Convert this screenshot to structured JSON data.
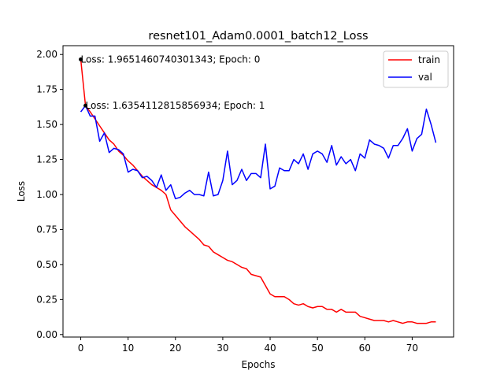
{
  "chart_data": {
    "type": "line",
    "title": "resnet101_Adam0.0001_batch12_Loss",
    "xlabel": "Epochs",
    "ylabel": "Loss",
    "xlim": [
      -3.75,
      78.75
    ],
    "ylim": [
      -0.018,
      2.063
    ],
    "xticks": [
      0,
      10,
      20,
      30,
      40,
      50,
      60,
      70
    ],
    "xtick_labels": [
      "0",
      "10",
      "20",
      "30",
      "40",
      "50",
      "60",
      "70"
    ],
    "yticks": [
      0.0,
      0.25,
      0.5,
      0.75,
      1.0,
      1.25,
      1.5,
      1.75,
      2.0
    ],
    "ytick_labels": [
      "0.00",
      "0.25",
      "0.50",
      "0.75",
      "1.00",
      "1.25",
      "1.50",
      "1.75",
      "2.00"
    ],
    "grid": false,
    "legend_position": "top-right",
    "series": [
      {
        "name": "train",
        "color": "#ff0000",
        "x": [
          0,
          1,
          2,
          3,
          4,
          5,
          6,
          7,
          8,
          9,
          10,
          11,
          12,
          13,
          14,
          15,
          16,
          17,
          18,
          19,
          20,
          21,
          22,
          23,
          24,
          25,
          26,
          27,
          28,
          29,
          30,
          31,
          32,
          33,
          34,
          35,
          36,
          37,
          38,
          39,
          40,
          41,
          42,
          43,
          44,
          45,
          46,
          47,
          48,
          49,
          50,
          51,
          52,
          53,
          54,
          55,
          56,
          57,
          58,
          59,
          60,
          61,
          62,
          63,
          64,
          65,
          66,
          67,
          68,
          69,
          70,
          71,
          72,
          73,
          74,
          75
        ],
        "values": [
          1.965,
          1.635,
          1.59,
          1.54,
          1.49,
          1.44,
          1.39,
          1.36,
          1.31,
          1.28,
          1.24,
          1.21,
          1.17,
          1.13,
          1.1,
          1.07,
          1.05,
          1.03,
          1.0,
          0.89,
          0.85,
          0.81,
          0.77,
          0.74,
          0.71,
          0.68,
          0.64,
          0.63,
          0.59,
          0.57,
          0.55,
          0.53,
          0.52,
          0.5,
          0.48,
          0.47,
          0.43,
          0.42,
          0.41,
          0.35,
          0.29,
          0.27,
          0.27,
          0.27,
          0.25,
          0.22,
          0.21,
          0.22,
          0.2,
          0.19,
          0.2,
          0.2,
          0.18,
          0.18,
          0.16,
          0.18,
          0.16,
          0.16,
          0.16,
          0.13,
          0.12,
          0.11,
          0.1,
          0.1,
          0.1,
          0.09,
          0.1,
          0.09,
          0.08,
          0.09,
          0.09,
          0.08,
          0.08,
          0.08,
          0.09,
          0.09
        ]
      },
      {
        "name": "val",
        "color": "#0000ff",
        "x": [
          0,
          1,
          2,
          3,
          4,
          5,
          6,
          7,
          8,
          9,
          10,
          11,
          12,
          13,
          14,
          15,
          16,
          17,
          18,
          19,
          20,
          21,
          22,
          23,
          24,
          25,
          26,
          27,
          28,
          29,
          30,
          31,
          32,
          33,
          34,
          35,
          36,
          37,
          38,
          39,
          40,
          41,
          42,
          43,
          44,
          45,
          46,
          47,
          48,
          49,
          50,
          51,
          52,
          53,
          54,
          55,
          56,
          57,
          58,
          59,
          60,
          61,
          62,
          63,
          64,
          65,
          66,
          67,
          68,
          69,
          70,
          71,
          72,
          73,
          74,
          75
        ],
        "values": [
          1.59,
          1.635,
          1.56,
          1.56,
          1.38,
          1.44,
          1.3,
          1.33,
          1.32,
          1.29,
          1.16,
          1.18,
          1.17,
          1.12,
          1.13,
          1.1,
          1.05,
          1.14,
          1.03,
          1.07,
          0.97,
          0.98,
          1.01,
          1.03,
          1.0,
          1.0,
          0.99,
          1.16,
          0.99,
          1.0,
          1.1,
          1.31,
          1.07,
          1.1,
          1.18,
          1.1,
          1.15,
          1.15,
          1.12,
          1.36,
          1.04,
          1.06,
          1.19,
          1.17,
          1.17,
          1.25,
          1.22,
          1.29,
          1.18,
          1.29,
          1.31,
          1.29,
          1.23,
          1.35,
          1.21,
          1.27,
          1.22,
          1.25,
          1.17,
          1.29,
          1.26,
          1.39,
          1.36,
          1.35,
          1.33,
          1.26,
          1.35,
          1.35,
          1.4,
          1.47,
          1.31,
          1.4,
          1.43,
          1.61,
          1.5,
          1.37
        ]
      }
    ],
    "annotations": [
      {
        "text": "Loss: 1.9651460740301343; Epoch: 0",
        "x": 0,
        "y": 1.965,
        "marker": true
      },
      {
        "text": "Loss: 1.6354112815856934; Epoch: 1",
        "x": 1,
        "y": 1.635,
        "marker": true
      }
    ]
  }
}
